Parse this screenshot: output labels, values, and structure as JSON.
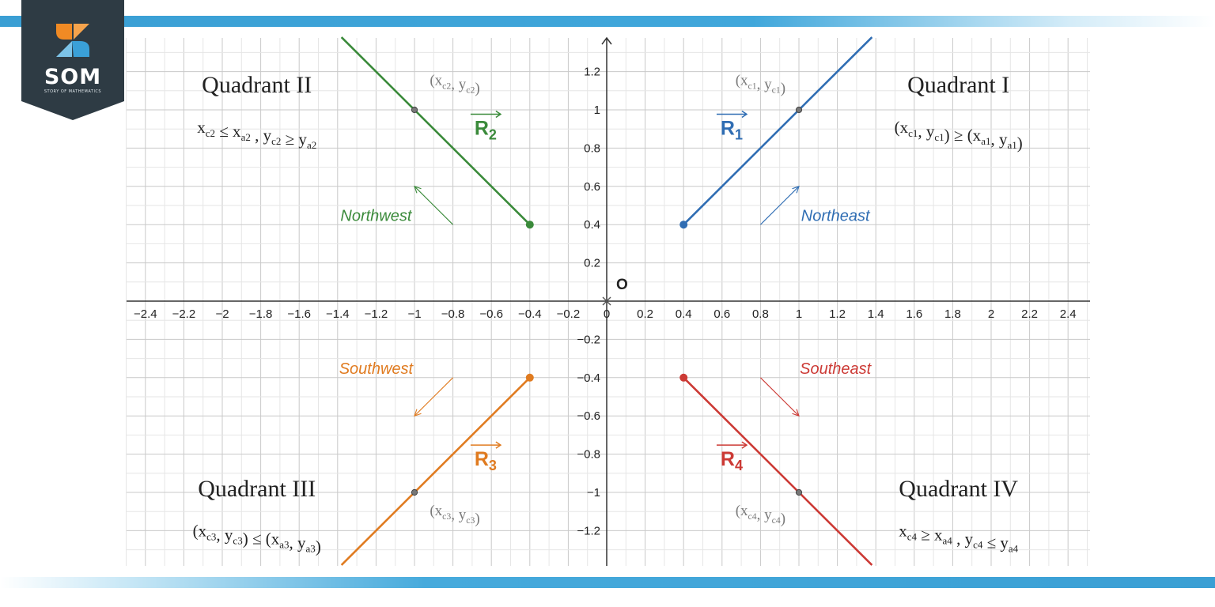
{
  "brand": {
    "logo_text": "SOM",
    "logo_subtext": "STORY OF MATHEMATICS",
    "colors": {
      "logo_bg": "#2e3b44",
      "logo_orange": "#f08a24",
      "logo_blue": "#3aa0d8",
      "band": "#3ea3d8"
    }
  },
  "chart_data": {
    "type": "line",
    "xlim": [
      -2.5,
      2.5
    ],
    "ylim": [
      -1.4,
      1.4
    ],
    "grid": true,
    "origin_label": "O",
    "x_ticks": [
      -2.4,
      -2.2,
      -2,
      -1.8,
      -1.6,
      -1.4,
      -1.2,
      -1,
      -0.8,
      -0.6,
      -0.4,
      -0.2,
      0,
      0.2,
      0.4,
      0.6,
      0.8,
      1,
      1.2,
      1.4,
      1.6,
      1.8,
      2,
      2.2,
      2.4
    ],
    "x_tick_labels": [
      "−2.4",
      "−2.2",
      "−2",
      "−1.8",
      "−1.6",
      "−1.4",
      "−1.2",
      "−1",
      "−0.8",
      "−0.6",
      "−0.4",
      "−0.2",
      "0",
      "0.2",
      "0.4",
      "0.6",
      "0.8",
      "1",
      "1.2",
      "1.4",
      "1.6",
      "1.8",
      "2",
      "2.2",
      "2.4"
    ],
    "y_ticks": [
      1.2,
      1,
      0.8,
      0.6,
      0.4,
      0.2,
      -0.2,
      -0.4,
      -0.6,
      -0.8,
      -1,
      -1.2
    ],
    "y_tick_labels": [
      "1.2",
      "1",
      "0.8",
      "0.6",
      "0.4",
      "0.2",
      "−0.2",
      "−0.4",
      "−0.6",
      "−0.8",
      "−1",
      "−1.2"
    ],
    "series": [
      {
        "quadrant": "I",
        "color": "#2f6db3",
        "start": [
          0.4,
          0.4
        ],
        "through": [
          1,
          1
        ],
        "end": [
          1.38,
          1.38
        ],
        "vector_symbol": "R",
        "vector_sub": "1",
        "vector_label_at": [
          0.65,
          0.87
        ],
        "point_label": {
          "text": "(x",
          "sub": "c1",
          "mid": ", y",
          "sub2": "c1",
          "close": ")",
          "at": [
            0.8,
            1.13
          ]
        },
        "direction": {
          "label": "Northeast",
          "label_at": [
            1.19,
            0.42
          ],
          "arrow_from": [
            0.8,
            0.4
          ],
          "arrow_to": [
            1,
            0.6
          ]
        }
      },
      {
        "quadrant": "II",
        "color": "#3a8a3a",
        "start": [
          -0.4,
          0.4
        ],
        "through": [
          -1,
          1
        ],
        "end": [
          -1.38,
          1.38
        ],
        "vector_symbol": "R",
        "vector_sub": "2",
        "vector_label_at": [
          -0.63,
          0.87
        ],
        "point_label": {
          "text": "(x",
          "sub": "c2",
          "mid": ", y",
          "sub2": "c2",
          "close": ")",
          "at": [
            -0.79,
            1.13
          ]
        },
        "direction": {
          "label": "Northwest",
          "label_at": [
            -1.2,
            0.42
          ],
          "arrow_from": [
            -0.8,
            0.4
          ],
          "arrow_to": [
            -1,
            0.6
          ]
        }
      },
      {
        "quadrant": "III",
        "color": "#e07b20",
        "start": [
          -0.4,
          -0.4
        ],
        "through": [
          -1,
          -1
        ],
        "end": [
          -1.38,
          -1.38
        ],
        "vector_symbol": "R",
        "vector_sub": "3",
        "vector_label_at": [
          -0.63,
          -0.86
        ],
        "point_label": {
          "text": "(x",
          "sub": "c3",
          "mid": ", y",
          "sub2": "c3",
          "close": ")",
          "at": [
            -0.79,
            -1.12
          ]
        },
        "direction": {
          "label": "Southwest",
          "label_at": [
            -1.2,
            -0.38
          ],
          "arrow_from": [
            -0.8,
            -0.4
          ],
          "arrow_to": [
            -1,
            -0.6
          ]
        }
      },
      {
        "quadrant": "IV",
        "color": "#cc3a35",
        "start": [
          0.4,
          -0.4
        ],
        "through": [
          1,
          -1
        ],
        "end": [
          1.38,
          -1.38
        ],
        "vector_symbol": "R",
        "vector_sub": "4",
        "vector_label_at": [
          0.65,
          -0.86
        ],
        "point_label": {
          "text": "(x",
          "sub": "c4",
          "mid": ", y",
          "sub2": "c4",
          "close": ")",
          "at": [
            0.8,
            -1.12
          ]
        },
        "direction": {
          "label": "Southeast",
          "label_at": [
            1.19,
            -0.38
          ],
          "arrow_from": [
            0.8,
            -0.4
          ],
          "arrow_to": [
            1,
            -0.6
          ]
        }
      }
    ],
    "quadrant_labels": [
      {
        "title": "Quadrant I",
        "title_at": [
          1.83,
          1.09
        ],
        "condition": [
          [
            "(x",
            ""
          ],
          [
            "c1",
            "sub"
          ],
          [
            ", y",
            ""
          ],
          [
            "c1",
            "sub"
          ],
          [
            ") ≥ (x",
            ""
          ],
          [
            "a1",
            "sub"
          ],
          [
            ", y",
            ""
          ],
          [
            "a1",
            "sub"
          ],
          [
            ")",
            ""
          ]
        ],
        "condition_at": [
          1.83,
          0.88
        ]
      },
      {
        "title": "Quadrant II",
        "title_at": [
          -1.82,
          1.09
        ],
        "condition": [
          [
            "x",
            ""
          ],
          [
            "c2",
            "sub"
          ],
          [
            " ≤ x",
            ""
          ],
          [
            "a2",
            "sub"
          ],
          [
            " , y",
            ""
          ],
          [
            "c2",
            "sub"
          ],
          [
            " ≥ y",
            ""
          ],
          [
            "a2",
            "sub"
          ]
        ],
        "condition_at": [
          -1.82,
          0.88
        ]
      },
      {
        "title": "Quadrant III",
        "title_at": [
          -1.82,
          -1.02
        ],
        "condition": [
          [
            "(x",
            ""
          ],
          [
            "c3",
            "sub"
          ],
          [
            ", y",
            ""
          ],
          [
            "c3",
            "sub"
          ],
          [
            ") ≤ (x",
            ""
          ],
          [
            "a3",
            "sub"
          ],
          [
            ", y",
            ""
          ],
          [
            "a3",
            "sub"
          ],
          [
            ")",
            ""
          ]
        ],
        "condition_at": [
          -1.82,
          -1.23
        ]
      },
      {
        "title": "Quadrant IV",
        "title_at": [
          1.83,
          -1.02
        ],
        "condition": [
          [
            "x",
            ""
          ],
          [
            "c4",
            "sub"
          ],
          [
            " ≥ x",
            ""
          ],
          [
            "a4",
            "sub"
          ],
          [
            " , y",
            ""
          ],
          [
            "c4",
            "sub"
          ],
          [
            " ≤ y",
            ""
          ],
          [
            "a4",
            "sub"
          ]
        ],
        "condition_at": [
          1.83,
          -1.23
        ]
      }
    ]
  }
}
